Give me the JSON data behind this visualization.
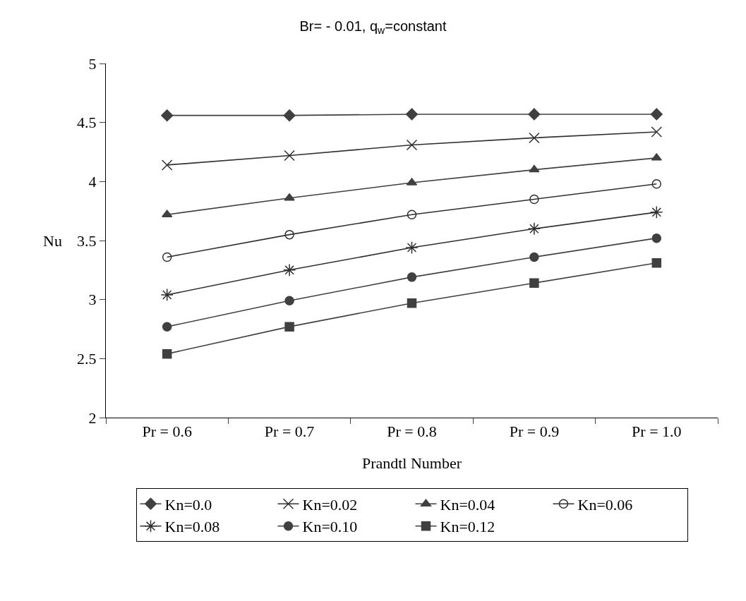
{
  "chart_data": {
    "type": "line",
    "title": "Br= - 0.01, q$_{w}$=constant",
    "xlabel": "Prandtl Number",
    "ylabel": "Nu",
    "categories": [
      "Pr = 0.6",
      "Pr = 0.7",
      "Pr = 0.8",
      "Pr = 0.9",
      "Pr = 1.0"
    ],
    "ylim": [
      2,
      5
    ],
    "yticks": [
      2,
      2.5,
      3,
      3.5,
      4,
      4.5,
      5
    ],
    "legend": "bottom",
    "line_style": "solid",
    "series": [
      {
        "name": "Kn=0.0",
        "color": "#404040",
        "marker": "diamond",
        "values": [
          4.56,
          4.56,
          4.57,
          4.57,
          4.57
        ]
      },
      {
        "name": "Kn=0.02",
        "color": "#303030",
        "marker": "cross",
        "values": [
          4.14,
          4.22,
          4.31,
          4.37,
          4.42
        ]
      },
      {
        "name": "Kn=0.04",
        "color": "#404040",
        "marker": "triangle",
        "values": [
          3.72,
          3.86,
          3.99,
          4.1,
          4.2
        ]
      },
      {
        "name": "Kn=0.06",
        "color": "#303030",
        "marker": "circle",
        "values": [
          3.36,
          3.55,
          3.72,
          3.85,
          3.98
        ]
      },
      {
        "name": "Kn=0.08",
        "color": "#303030",
        "marker": "cross",
        "values": [
          3.04,
          3.25,
          3.44,
          3.6,
          3.74
        ]
      },
      {
        "name": "Kn=0.10",
        "color": "#404040",
        "marker": "circle",
        "values": [
          2.77,
          2.99,
          3.19,
          3.36,
          3.52
        ]
      },
      {
        "name": "Kn=0.12",
        "color": "#404040",
        "marker": "square",
        "values": [
          2.54,
          2.77,
          2.97,
          3.14,
          3.31
        ]
      }
    ]
  }
}
